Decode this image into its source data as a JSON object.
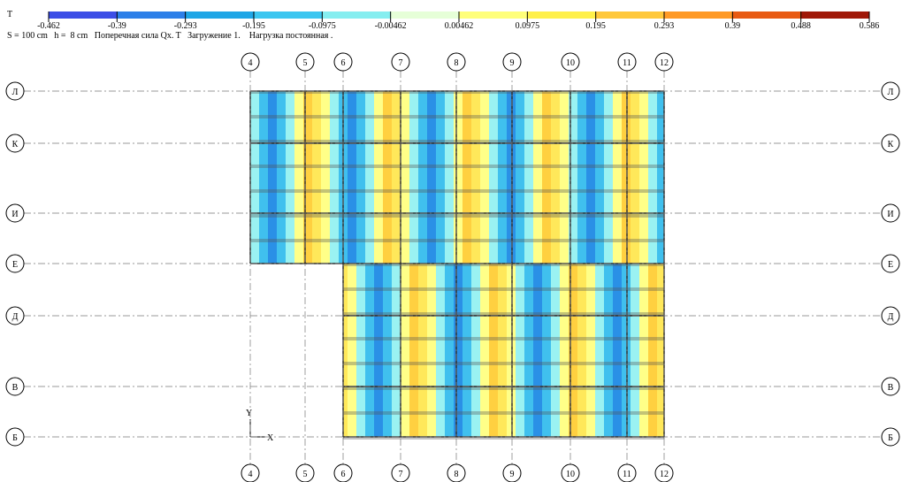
{
  "legend": {
    "unit": "T",
    "labels": [
      "-0.462",
      "-0.39",
      "-0.293",
      "-0.195",
      "-0.0975",
      "-0.00462",
      "0.00462",
      "0.0975",
      "0.195",
      "0.293",
      "0.39",
      "0.488",
      "0.586"
    ],
    "colors": [
      "#3c4ee6",
      "#2c7fe8",
      "#1ea6e6",
      "#3cc6f0",
      "#86eef0",
      "#e6ffd8",
      "#ffff7a",
      "#fff04a",
      "#ffc83c",
      "#ff9a26",
      "#e85a12",
      "#a01808"
    ]
  },
  "caption": "S = 100 cm   h =  8 cm   Поперечная сила Qx. T   Загружение 1.    Нагрузка постоянная .",
  "columns": [
    "4",
    "5",
    "6",
    "7",
    "8",
    "9",
    "10",
    "11",
    "12"
  ],
  "rows": [
    "Л",
    "К",
    "И",
    "Е",
    "Д",
    "В",
    "Б"
  ],
  "axes": {
    "y": "Y",
    "x": "X"
  }
}
